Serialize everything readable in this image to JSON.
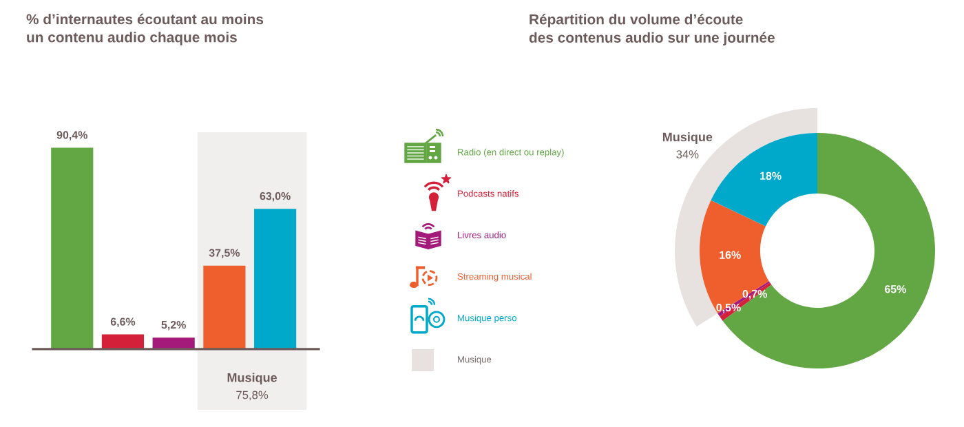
{
  "chart_data": [
    {
      "type": "bar",
      "title": "% d’internautes écoutant au moins\nun contenu audio chaque mois",
      "categories": [
        null,
        null,
        null,
        null,
        null
      ],
      "values": [
        90.4,
        6.6,
        5.2,
        37.5,
        63.0
      ],
      "colors": [
        "#62a744",
        "#d42139",
        "#a31a7b",
        "#ef5f2d",
        "#00a9c9"
      ],
      "value_labels": [
        "90,4%",
        "6,6%",
        "5,2%",
        "37,5%",
        "63,0%"
      ],
      "annotations": [
        "Musique\n75,8%"
      ]
    },
    {
      "type": "donut",
      "title": "Répartition du volume d’écoute\ndes contenus audio sur une journée",
      "categories": [
        "Radio (en direct ou replay)",
        "Podcasts natifs",
        "Livres audio",
        "Streaming musical",
        "Musique perso"
      ],
      "values": [
        65,
        0.7,
        0.5,
        16,
        18
      ],
      "colors": [
        "#62a744",
        "#d42139",
        "#a31a7b",
        "#ef5f2d",
        "#00a9c9"
      ],
      "value_labels": [
        "65%",
        "0,7%",
        "0,5%",
        "16%",
        "18%"
      ],
      "annotations": [
        "Musique\n34%",
        "Musique"
      ],
      "legend": "left"
    }
  ]
}
